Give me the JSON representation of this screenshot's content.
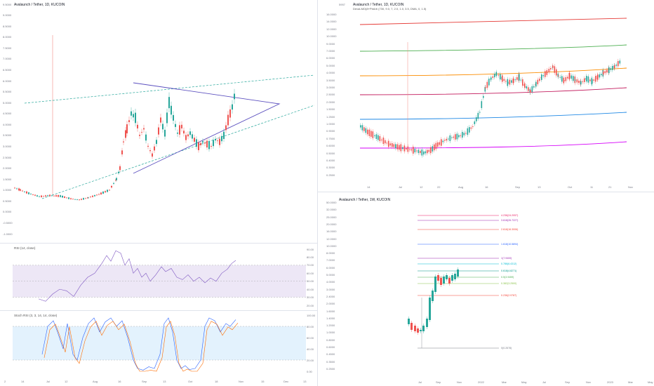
{
  "left_chart": {
    "title": "Avalaunch / Tether, 1D, KUCOIN",
    "y_ticks": [
      "9.5000",
      "9.0000",
      "8.5000",
      "8.0000",
      "7.5000",
      "7.0000",
      "6.5000",
      "6.0000",
      "5.5000",
      "5.0000",
      "4.5000",
      "4.0000",
      "3.5000",
      "3.0000",
      "2.5000",
      "2.0000",
      "1.5000",
      "1.0000",
      "0.5000",
      "0.0000",
      "-0.5000",
      "-1.0000"
    ],
    "x_ticks": [
      "14",
      "Jul",
      "12",
      "Aug",
      "16",
      "Sep",
      "13",
      "Oct",
      "18",
      "Nov",
      "15",
      "Dec",
      "13"
    ],
    "rsi_label": "RSI (14, close)",
    "rsi_ticks": [
      "90.00",
      "80.00",
      "70.00",
      "60.00",
      "50.00",
      "40.00",
      "30.00",
      "20.00"
    ],
    "stoch_label": "Stoch RSI (3, 3, 14, 14, close)",
    "stoch_ticks": [
      "100.00",
      "80.00",
      "60.00",
      "40.00",
      "20.00",
      "0.00"
    ],
    "bottom_left_marker": "2"
  },
  "right_top_chart": {
    "title": "Avalaunch / Tether, 1D, KUCOIN",
    "subtitle": "DevaLMO(8+PbArb (730, 9.0, 7, 2.0, 1.0, 3.5, DMA, 0, 1.5)",
    "y_ticks": [
      "16.0000",
      "14.0000",
      "12.0000",
      "10.0000",
      "9.0000",
      "7.0000",
      "6.0000",
      "5.0000",
      "4.0000",
      "3.5000",
      "3.0000",
      "2.5000",
      "2.0000",
      "1.5000",
      "1.2500",
      "1.0000",
      "0.9000",
      "0.7500",
      "0.6000",
      "0.5000",
      "0.4000",
      "0.3000",
      "0.2500"
    ],
    "top_label": "5957",
    "x_ticks": [
      "14",
      "Jul",
      "12",
      "22",
      "Aug",
      "16",
      "Sep",
      "13",
      "Oct",
      "11",
      "21",
      "Nov"
    ]
  },
  "right_bottom_chart": {
    "title": "Avalaunch / Tether, 1W, KUCOIN",
    "y_ticks": [
      "50.0000",
      "32.0000",
      "25.0000",
      "20.0000",
      "16.0000",
      "12.0000",
      "10.0000",
      "8.0000",
      "7.0000",
      "6.0000",
      "5.0000",
      "4.0000",
      "3.0000",
      "2.4000",
      "2.0000",
      "1.6000",
      "1.4000",
      "1.2000",
      "1.0000",
      "0.8000",
      "0.6000",
      "0.4500",
      "0.3500",
      "0.2500"
    ],
    "x_ticks": [
      "Jul",
      "Sep",
      "Nov",
      "2022",
      "Mar",
      "May",
      "Jul",
      "Sep",
      "Nov",
      "2023",
      "Mar",
      "May"
    ],
    "fib_levels": [
      "4.236(24.2057)",
      "3.618(26.7227)",
      "2.618(16.3006)",
      "1.618(10.5894)",
      "1(7.9400)",
      "0.786(6.4312)",
      "0.618(4.8271)",
      "0.5(3.9459)",
      "0.382(3.2500)",
      "0.236(2.9787)",
      "0(0.2676)"
    ]
  },
  "colors": {
    "up": "#26a69a",
    "down": "#ef5350",
    "triangle": "#5b4fbf",
    "trend_dash": "#26a69a",
    "rsi_line": "#7e57c2",
    "rsi_band": "#ede7f6",
    "stoch_band": "#e3f2fd"
  }
}
